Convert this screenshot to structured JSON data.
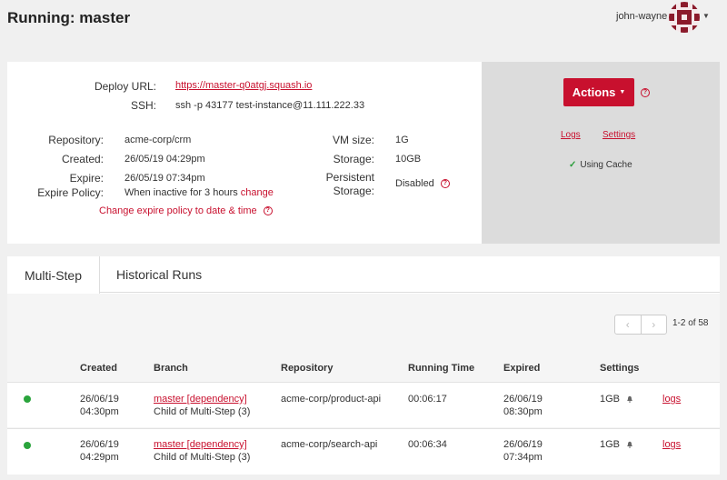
{
  "header": {
    "title": "Running: master",
    "user": "john-wayne"
  },
  "info": {
    "deploy_url_label": "Deploy URL:",
    "deploy_url": "https://master-q0atgj.squash.io",
    "ssh_label": "SSH:",
    "ssh": "ssh -p 43177 test-instance@11.111.222.33",
    "repository_label": "Repository:",
    "repository": "acme-corp/crm",
    "created_label": "Created:",
    "created": "26/05/19 04:29pm",
    "expire_label": "Expire:",
    "expire": "26/05/19 07:34pm",
    "expire_policy_label": "Expire Policy:",
    "expire_policy": "When inactive for 3 hours",
    "change_label": "change",
    "change_policy_label": "Change expire policy to date & time",
    "vm_size_label": "VM size:",
    "vm_size": "1G",
    "storage_label": "Storage:",
    "storage": "10GB",
    "persistent_label_1": "Persistent",
    "persistent_label_2": "Storage:",
    "persistent": "Disabled"
  },
  "side": {
    "actions_label": "Actions",
    "logs_label": "Logs",
    "settings_label": "Settings",
    "cache_label": "Using Cache"
  },
  "tabs": [
    {
      "label": "Multi-Step",
      "active": true
    },
    {
      "label": "Historical Runs",
      "active": false
    }
  ],
  "pagination": {
    "prev": "‹",
    "next": "›",
    "count": "1-2 of 58"
  },
  "table": {
    "headers": [
      "Created",
      "Branch",
      "Repository",
      "Running Time",
      "Expired",
      "Settings"
    ],
    "rows": [
      {
        "created_date": "26/06/19",
        "created_time": "04:30pm",
        "branch": "master [dependency]",
        "child": "Child of Multi-Step (3)",
        "repository": "acme-corp/product-api",
        "running_time": "00:06:17",
        "expired_date": "26/06/19",
        "expired_time": "08:30pm",
        "settings": "1GB",
        "logs": "logs"
      },
      {
        "created_date": "26/06/19",
        "created_time": "04:29pm",
        "branch": "master [dependency]",
        "child": "Child of Multi-Step (3)",
        "repository": "acme-corp/search-api",
        "running_time": "00:06:34",
        "expired_date": "26/06/19",
        "expired_time": "07:34pm",
        "settings": "1GB",
        "logs": "logs"
      }
    ]
  },
  "colors": {
    "accent": "#c8102e",
    "status_running": "#2aa43c"
  }
}
